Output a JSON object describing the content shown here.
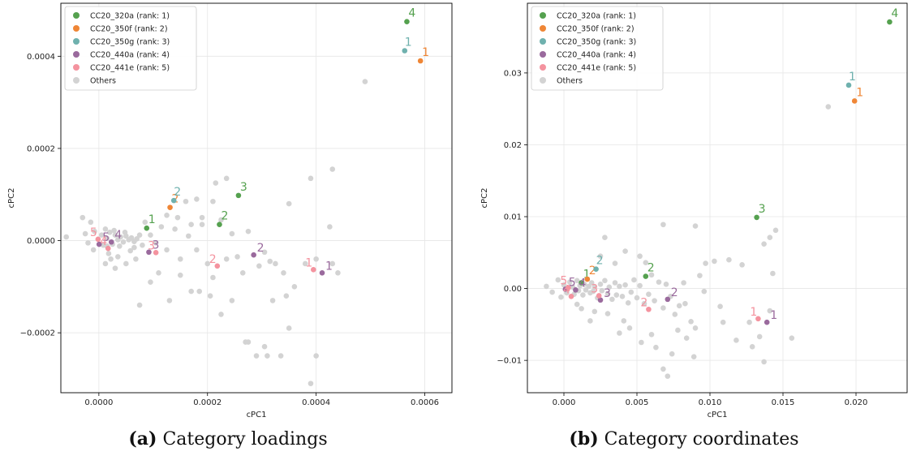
{
  "colors": {
    "CC20_320a": "#55a14f",
    "CC20_350f": "#ef8636",
    "CC20_350g": "#6fb1ae",
    "CC20_440a": "#9a6a9d",
    "CC20_441e": "#f4939f",
    "Others": "#d3d3d3"
  },
  "legend": [
    {
      "key": "CC20_320a",
      "label": "CC20_320a (rank: 1)"
    },
    {
      "key": "CC20_350f",
      "label": "CC20_350f (rank: 2)"
    },
    {
      "key": "CC20_350g",
      "label": "CC20_350g (rank: 3)"
    },
    {
      "key": "CC20_440a",
      "label": "CC20_440a (rank: 4)"
    },
    {
      "key": "CC20_441e",
      "label": "CC20_441e (rank: 5)"
    },
    {
      "key": "Others",
      "label": "Others"
    }
  ],
  "chart_data": [
    {
      "type": "scatter",
      "caption_prefix": "(a)",
      "caption": "Category loadings",
      "xlabel": "cPC1",
      "ylabel": "cPC2",
      "xlim": [
        -7e-05,
        0.00065
      ],
      "ylim": [
        -0.00033,
        0.000515
      ],
      "xticks": [
        0,
        0.0002,
        0.0004,
        0.0006
      ],
      "xtick_labels": [
        "0.0000",
        "0.0002",
        "0.0004",
        "0.0006"
      ],
      "yticks": [
        -0.0002,
        0,
        0.0002,
        0.0004
      ],
      "ytick_labels": [
        "−0.0002",
        "0.0000",
        "0.0002",
        "0.0004"
      ],
      "grid": true,
      "legend_position": "top-left",
      "highlighted": [
        {
          "key": "CC20_320a",
          "label": "1",
          "x": 8.8e-05,
          "y": 2.7e-05
        },
        {
          "key": "CC20_320a",
          "label": "2",
          "x": 0.000222,
          "y": 3.5e-05
        },
        {
          "key": "CC20_320a",
          "label": "3",
          "x": 0.000257,
          "y": 9.8e-05
        },
        {
          "key": "CC20_320a",
          "label": "4",
          "x": 0.000567,
          "y": 0.000475
        },
        {
          "key": "CC20_350f",
          "label": "1",
          "x": 0.000592,
          "y": 0.00039
        },
        {
          "key": "CC20_350f",
          "label": "2",
          "x": 0.000131,
          "y": 7.2e-05
        },
        {
          "key": "CC20_350g",
          "label": "1",
          "x": 0.000563,
          "y": 0.000412
        },
        {
          "key": "CC20_350g",
          "label": "2",
          "x": 0.000138,
          "y": 8.7e-05
        },
        {
          "key": "CC20_440a",
          "label": "1",
          "x": 0.000411,
          "y": -7e-05
        },
        {
          "key": "CC20_440a",
          "label": "2",
          "x": 0.000285,
          "y": -3.1e-05
        },
        {
          "key": "CC20_440a",
          "label": "3",
          "x": 9.2e-05,
          "y": -2.5e-05
        },
        {
          "key": "CC20_440a",
          "label": "4",
          "x": 2.3e-05,
          "y": -3e-06
        },
        {
          "key": "CC20_440a",
          "label": "5",
          "x": 5e-07,
          "y": -8e-06
        },
        {
          "key": "CC20_441e",
          "label": "1",
          "x": 0.000395,
          "y": -6.3e-05
        },
        {
          "key": "CC20_441e",
          "label": "2",
          "x": 0.000218,
          "y": -5.5e-05
        },
        {
          "key": "CC20_441e",
          "label": "3",
          "x": 0.000105,
          "y": -2.6e-05
        },
        {
          "key": "CC20_441e",
          "label": "4",
          "x": 1.7e-05,
          "y": -1.7e-05
        },
        {
          "key": "CC20_441e",
          "label": "5",
          "x": -1.5e-06,
          "y": 3e-06
        }
      ],
      "others": [
        [
          -6e-05,
          8e-06
        ],
        [
          -2.5e-05,
          1.5e-05
        ],
        [
          -2e-05,
          -5e-06
        ],
        [
          -1.5e-05,
          4e-05
        ],
        [
          -1e-05,
          -2e-05
        ],
        [
          -8e-06,
          2e-05
        ],
        [
          5e-06,
          1.2e-05
        ],
        [
          8e-06,
          -1e-05
        ],
        [
          1.2e-05,
          2.5e-05
        ],
        [
          1.5e-05,
          5e-06
        ],
        [
          2e-05,
          1.8e-05
        ],
        [
          2.5e-05,
          -8e-06
        ],
        [
          3e-05,
          1.2e-05
        ],
        [
          3.5e-05,
          2e-06
        ],
        [
          4e-05,
          8e-06
        ],
        [
          4.5e-05,
          -3e-06
        ],
        [
          5e-05,
          1e-05
        ],
        [
          5.5e-05,
          2e-06
        ],
        [
          6e-05,
          6e-06
        ],
        [
          6.5e-05,
          -2e-06
        ],
        [
          7e-05,
          4e-06
        ],
        [
          7.5e-05,
          1.2e-05
        ],
        [
          8e-05,
          -1e-05
        ],
        [
          2.8e-05,
          2.2e-05
        ],
        [
          3.8e-05,
          -1.2e-05
        ],
        [
          4.8e-05,
          1.8e-05
        ],
        [
          1.8e-05,
          -2.8e-05
        ],
        [
          2.2e-05,
          -4e-05
        ],
        [
          1.2e-05,
          -5e-05
        ],
        [
          3.5e-05,
          -3.5e-05
        ],
        [
          5.8e-05,
          -2.2e-05
        ],
        [
          6.8e-05,
          -4e-05
        ],
        [
          8.5e-05,
          4e-05
        ],
        [
          9.5e-05,
          1.2e-05
        ],
        [
          0.000105,
          -5e-06
        ],
        [
          0.000115,
          3e-05
        ],
        [
          0.000125,
          -2e-05
        ],
        [
          0.00014,
          2.5e-05
        ],
        [
          0.00015,
          -4e-05
        ],
        [
          0.000165,
          1e-05
        ],
        [
          0.00018,
          -2e-05
        ],
        [
          0.00019,
          3.5e-05
        ],
        [
          0.0002,
          -5e-05
        ],
        [
          0.00021,
          -8e-05
        ],
        [
          0.000225,
          4.5e-05
        ],
        [
          0.000235,
          -4e-05
        ],
        [
          0.000245,
          1.5e-05
        ],
        [
          0.000255,
          -3.5e-05
        ],
        [
          0.000265,
          -7e-05
        ],
        [
          0.000275,
          2e-05
        ],
        [
          0.000295,
          -5.5e-05
        ],
        [
          0.000305,
          -2.5e-05
        ],
        [
          0.000315,
          -4.5e-05
        ],
        [
          0.000325,
          -5e-05
        ],
        [
          0.00034,
          -7e-05
        ],
        [
          0.00036,
          -0.0001
        ],
        [
          0.00038,
          -5e-05
        ],
        [
          0.0004,
          -4e-05
        ],
        [
          0.000425,
          3e-05
        ],
        [
          0.00043,
          -5e-05
        ],
        [
          0.00044,
          -7e-05
        ],
        [
          0.00049,
          0.000345
        ],
        [
          0.00043,
          0.000155
        ],
        [
          0.00039,
          0.000135
        ],
        [
          0.00035,
          8e-05
        ],
        [
          0.00032,
          -0.00013
        ],
        [
          0.000345,
          -0.00012
        ],
        [
          0.00027,
          -0.00022
        ],
        [
          0.000275,
          -0.00022
        ],
        [
          0.00029,
          -0.00025
        ],
        [
          0.000305,
          -0.00023
        ],
        [
          0.00031,
          -0.00025
        ],
        [
          0.000335,
          -0.00025
        ],
        [
          0.00035,
          -0.00019
        ],
        [
          0.0004,
          -0.00025
        ],
        [
          0.00039,
          -0.00031
        ],
        [
          0.000245,
          -0.00013
        ],
        [
          0.000225,
          -0.00016
        ],
        [
          0.000205,
          -0.00012
        ],
        [
          0.000185,
          -0.00011
        ],
        [
          0.00017,
          -0.00011
        ],
        [
          0.00015,
          -7.5e-05
        ],
        [
          0.00013,
          -0.00013
        ],
        [
          0.00011,
          -7e-05
        ],
        [
          9.5e-05,
          -9e-05
        ],
        [
          7.5e-05,
          -0.00014
        ],
        [
          0.000215,
          0.000125
        ],
        [
          0.000235,
          0.000135
        ],
        [
          0.00021,
          8.5e-05
        ],
        [
          0.00018,
          9e-05
        ],
        [
          0.00016,
          8.5e-05
        ],
        [
          0.000145,
          5e-05
        ],
        [
          0.000125,
          5.5e-05
        ],
        [
          0.00019,
          5e-05
        ],
        [
          0.00017,
          3.5e-05
        ],
        [
          -3e-05,
          5e-05
        ],
        [
          3e-05,
          -6e-05
        ],
        [
          5e-05,
          -5e-05
        ],
        [
          6.5e-05,
          -1.5e-05
        ],
        [
          1.5e-05,
          -1.2e-05
        ]
      ]
    },
    {
      "type": "scatter",
      "caption_prefix": "(b)",
      "caption": "Category coordinates",
      "xlabel": "cPC1",
      "ylabel": "cPC2",
      "xlim": [
        -0.0025,
        0.0235
      ],
      "ylim": [
        -0.0145,
        0.0397
      ],
      "xticks": [
        0,
        0.005,
        0.01,
        0.015,
        0.02
      ],
      "xtick_labels": [
        "0.000",
        "0.005",
        "0.010",
        "0.015",
        "0.020"
      ],
      "yticks": [
        -0.01,
        0,
        0.01,
        0.02,
        0.03
      ],
      "ytick_labels": [
        "−0.01",
        "0.00",
        "0.01",
        "0.02",
        "0.03"
      ],
      "grid": true,
      "legend_position": "top-left",
      "highlighted": [
        {
          "key": "CC20_320a",
          "label": "1",
          "x": 0.0012,
          "y": 0.0008
        },
        {
          "key": "CC20_320a",
          "label": "2",
          "x": 0.0056,
          "y": 0.0017
        },
        {
          "key": "CC20_320a",
          "label": "3",
          "x": 0.0132,
          "y": 0.0099
        },
        {
          "key": "CC20_320a",
          "label": "4",
          "x": 0.0223,
          "y": 0.0371
        },
        {
          "key": "CC20_350f",
          "label": "1",
          "x": 0.0199,
          "y": 0.0261
        },
        {
          "key": "CC20_350f",
          "label": "2",
          "x": 0.0016,
          "y": 0.0013
        },
        {
          "key": "CC20_350g",
          "label": "1",
          "x": 0.0195,
          "y": 0.0283
        },
        {
          "key": "CC20_350g",
          "label": "2",
          "x": 0.0022,
          "y": 0.0027
        },
        {
          "key": "CC20_440a",
          "label": "1",
          "x": 0.0139,
          "y": -0.0047
        },
        {
          "key": "CC20_440a",
          "label": "2",
          "x": 0.0071,
          "y": -0.0015
        },
        {
          "key": "CC20_440a",
          "label": "3",
          "x": 0.0025,
          "y": -0.0016
        },
        {
          "key": "CC20_440a",
          "label": "4",
          "x": 0.0008,
          "y": -0.0002
        },
        {
          "key": "CC20_440a",
          "label": "5",
          "x": 0.0001,
          "y": -0.0001
        },
        {
          "key": "CC20_441e",
          "label": "1",
          "x": 0.0133,
          "y": -0.0042
        },
        {
          "key": "CC20_441e",
          "label": "2",
          "x": 0.0058,
          "y": -0.0029
        },
        {
          "key": "CC20_441e",
          "label": "3",
          "x": 0.0024,
          "y": -0.001
        },
        {
          "key": "CC20_441e",
          "label": "4",
          "x": 0.0005,
          "y": -0.0011
        },
        {
          "key": "CC20_441e",
          "label": "5",
          "x": 0.0003,
          "y": 0.0001
        }
      ],
      "others": [
        [
          -0.0012,
          0.0003
        ],
        [
          -0.0008,
          -0.0005
        ],
        [
          -0.0004,
          0.0012
        ],
        [
          -0.0002,
          -0.0012
        ],
        [
          0.0,
          0.0005
        ],
        [
          0.0002,
          -0.0006
        ],
        [
          0.0004,
          0.0009
        ],
        [
          0.0006,
          0.0002
        ],
        [
          0.0007,
          -0.0008
        ],
        [
          0.0009,
          0.0011
        ],
        [
          0.001,
          -0.0003
        ],
        [
          0.0011,
          0.0004
        ],
        [
          0.0013,
          -0.0009
        ],
        [
          0.0014,
          0.0006
        ],
        [
          0.0015,
          -0.0002
        ],
        [
          0.0017,
          0.0003
        ],
        [
          0.0018,
          -0.0006
        ],
        [
          0.0019,
          0.0008
        ],
        [
          0.002,
          -0.0004
        ],
        [
          0.0021,
          0.0002
        ],
        [
          0.0023,
          -0.0013
        ],
        [
          0.0025,
          0.0006
        ],
        [
          0.0026,
          -0.0003
        ],
        [
          0.0028,
          0.0011
        ],
        [
          0.003,
          -0.0007
        ],
        [
          0.0031,
          0.0002
        ],
        [
          0.0033,
          -0.0015
        ],
        [
          0.0035,
          0.0008
        ],
        [
          0.0036,
          -0.0009
        ],
        [
          0.0038,
          0.0003
        ],
        [
          0.004,
          -0.0011
        ],
        [
          0.0042,
          0.0005
        ],
        [
          0.0044,
          -0.002
        ],
        [
          0.0046,
          -0.0005
        ],
        [
          0.0048,
          0.0012
        ],
        [
          0.005,
          -0.0013
        ],
        [
          0.0052,
          0.0004
        ],
        [
          0.0055,
          -0.0021
        ],
        [
          0.0058,
          -0.0008
        ],
        [
          0.006,
          0.0019
        ],
        [
          0.0062,
          -0.0017
        ],
        [
          0.0065,
          0.0009
        ],
        [
          0.0068,
          -0.0027
        ],
        [
          0.007,
          0.0006
        ],
        [
          0.0073,
          -0.0011
        ],
        [
          0.0076,
          -0.0036
        ],
        [
          0.0079,
          -0.0024
        ],
        [
          0.0083,
          -0.0021
        ],
        [
          0.0087,
          -0.0046
        ],
        [
          0.009,
          -0.0055
        ],
        [
          0.0093,
          0.0018
        ],
        [
          0.0097,
          0.0035
        ],
        [
          0.0103,
          0.0038
        ],
        [
          0.0107,
          -0.0025
        ],
        [
          0.0109,
          -0.0047
        ],
        [
          0.0113,
          0.004
        ],
        [
          0.0118,
          -0.0072
        ],
        [
          0.0122,
          0.0033
        ],
        [
          0.0127,
          -0.0047
        ],
        [
          0.0129,
          -0.0081
        ],
        [
          0.0134,
          -0.0067
        ],
        [
          0.0137,
          -0.0102
        ],
        [
          0.0141,
          -0.0031
        ],
        [
          0.0143,
          0.0021
        ],
        [
          0.0156,
          -0.0069
        ],
        [
          0.0137,
          0.0062
        ],
        [
          0.0145,
          0.0081
        ],
        [
          0.0141,
          0.0071
        ],
        [
          0.0181,
          0.0253
        ],
        [
          0.009,
          0.0087
        ],
        [
          0.0068,
          0.0089
        ],
        [
          0.0042,
          0.0052
        ],
        [
          0.0052,
          0.0045
        ],
        [
          0.0056,
          0.0036
        ],
        [
          0.0028,
          0.0071
        ],
        [
          0.0035,
          0.0035
        ],
        [
          0.0025,
          0.0045
        ],
        [
          0.006,
          -0.0064
        ],
        [
          0.0063,
          -0.0082
        ],
        [
          0.0068,
          -0.0112
        ],
        [
          0.0071,
          -0.0122
        ],
        [
          0.0074,
          -0.0091
        ],
        [
          0.0078,
          -0.0058
        ],
        [
          0.0084,
          -0.0069
        ],
        [
          0.0089,
          -0.0095
        ],
        [
          0.0053,
          -0.0075
        ],
        [
          0.0045,
          -0.0055
        ],
        [
          0.0038,
          -0.0062
        ],
        [
          0.0041,
          -0.0045
        ],
        [
          0.003,
          -0.0035
        ],
        [
          0.0021,
          -0.0032
        ],
        [
          0.0018,
          -0.0045
        ],
        [
          0.0012,
          -0.0028
        ],
        [
          0.0009,
          -0.0022
        ],
        [
          0.0096,
          -0.0004
        ],
        [
          0.0082,
          0.0008
        ]
      ]
    }
  ]
}
